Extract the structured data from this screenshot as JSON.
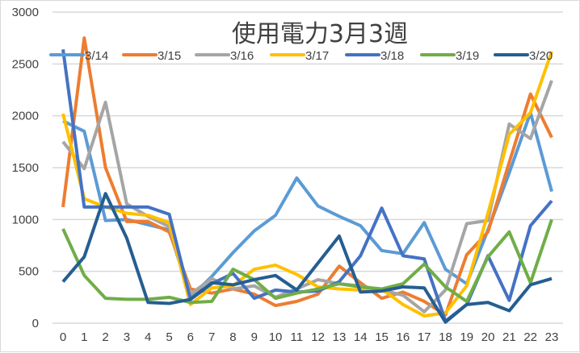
{
  "chart_data": {
    "type": "line",
    "title": "使用電力3月3週",
    "xlabel": "",
    "ylabel": "",
    "x": [
      0,
      1,
      2,
      3,
      4,
      5,
      6,
      7,
      8,
      9,
      10,
      11,
      12,
      13,
      14,
      15,
      16,
      17,
      18,
      19,
      20,
      21,
      22,
      23
    ],
    "ylim": [
      0,
      3000
    ],
    "yticks": [
      0,
      500,
      1000,
      1500,
      2000,
      2500,
      3000
    ],
    "grid": true,
    "legend_position": "top",
    "series": [
      {
        "name": "3/14",
        "color": "#5B9BD5",
        "values": [
          1950,
          1850,
          990,
          1000,
          950,
          900,
          250,
          450,
          680,
          890,
          1040,
          1400,
          1130,
          1030,
          940,
          700,
          670,
          970,
          520,
          380,
          900,
          1450,
          2030,
          1270
        ]
      },
      {
        "name": "3/15",
        "color": "#ED7D31",
        "values": [
          1120,
          2750,
          1500,
          980,
          980,
          880,
          330,
          290,
          330,
          280,
          170,
          210,
          280,
          550,
          390,
          240,
          300,
          210,
          80,
          660,
          880,
          1550,
          2210,
          1790
        ]
      },
      {
        "name": "3/16",
        "color": "#A5A5A5",
        "values": [
          1750,
          1490,
          2130,
          1150,
          1030,
          930,
          280,
          430,
          330,
          360,
          250,
          330,
          420,
          380,
          360,
          320,
          270,
          110,
          320,
          960,
          990,
          1920,
          1780,
          2340
        ]
      },
      {
        "name": "3/17",
        "color": "#FFC000",
        "values": [
          2020,
          1200,
          1120,
          1060,
          1040,
          970,
          180,
          340,
          360,
          520,
          560,
          470,
          350,
          330,
          320,
          330,
          180,
          70,
          100,
          360,
          1060,
          1820,
          2030,
          2620
        ]
      },
      {
        "name": "3/18",
        "color": "#4472C4",
        "values": [
          2640,
          1120,
          1120,
          1120,
          1120,
          1050,
          230,
          380,
          480,
          240,
          320,
          300,
          310,
          400,
          650,
          1110,
          650,
          620,
          20,
          180,
          650,
          220,
          940,
          1180
        ]
      },
      {
        "name": "3/19",
        "color": "#70AD47",
        "values": [
          910,
          460,
          240,
          230,
          230,
          250,
          200,
          210,
          520,
          420,
          240,
          290,
          330,
          380,
          350,
          330,
          380,
          570,
          350,
          210,
          640,
          880,
          390,
          1000
        ]
      },
      {
        "name": "3/20",
        "color": "#255E91",
        "values": [
          400,
          640,
          1250,
          820,
          200,
          190,
          230,
          390,
          370,
          420,
          460,
          320,
          580,
          840,
          300,
          310,
          350,
          340,
          10,
          180,
          200,
          120,
          370,
          430
        ]
      }
    ]
  }
}
